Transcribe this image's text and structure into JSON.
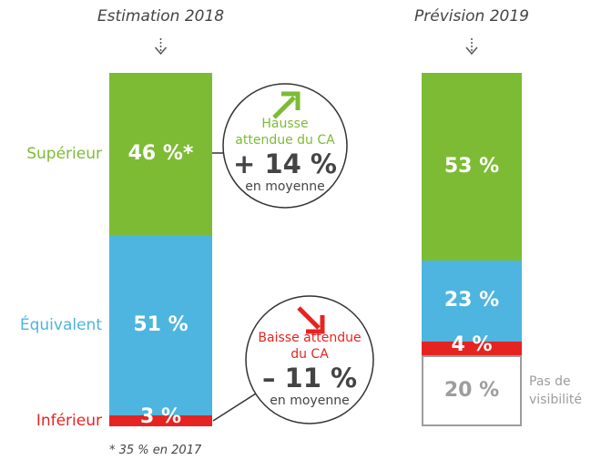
{
  "chart_data": {
    "type": "stacked_bar",
    "categories": [
      "Estimation 2018",
      "Prévision 2019"
    ],
    "series": [
      {
        "name": "Supérieur",
        "color": "#7dbb35",
        "values": [
          46,
          53
        ],
        "value_labels": [
          "46 %*",
          "53 %"
        ]
      },
      {
        "name": "Équivalent",
        "color": "#4db5df",
        "values": [
          51,
          23
        ],
        "value_labels": [
          "51 %",
          "23 %"
        ]
      },
      {
        "name": "Inférieur",
        "color": "#e52421",
        "values": [
          3,
          4
        ],
        "value_labels": [
          "3 %",
          "4 %"
        ]
      },
      {
        "name": "Pas de visibilité",
        "color": "#9d9d9c",
        "outline": true,
        "values": [
          null,
          20
        ],
        "value_labels": [
          null,
          "20 %"
        ]
      }
    ],
    "annotations": [
      {
        "title": "Hausse attendue du CA",
        "value_text": "+ 14 %",
        "note": "en moyenne",
        "color": "#7dbb35"
      },
      {
        "title": "Baisse attendue du CA",
        "value_text": "– 11 %",
        "note": "en moyenne",
        "color": "#e52421"
      }
    ],
    "footnote": "* 35 % en 2017"
  }
}
